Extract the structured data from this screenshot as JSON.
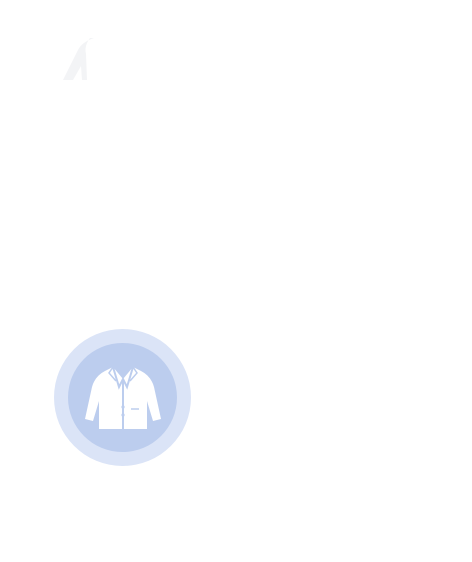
{
  "colors": {
    "background": "#ffffff",
    "mark": "#f3f4f6",
    "badge_outer": "#dbe4f7",
    "badge_inner": "#bccdee",
    "icon": "#ffffff"
  },
  "badge": {
    "icon": "jacket-icon",
    "label": ""
  }
}
